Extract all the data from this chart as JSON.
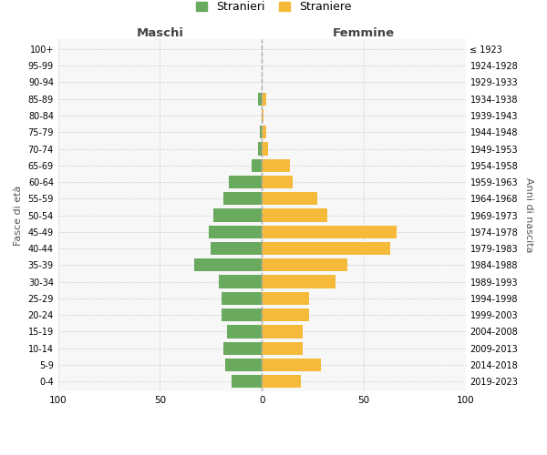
{
  "age_groups": [
    "0-4",
    "5-9",
    "10-14",
    "15-19",
    "20-24",
    "25-29",
    "30-34",
    "35-39",
    "40-44",
    "45-49",
    "50-54",
    "55-59",
    "60-64",
    "65-69",
    "70-74",
    "75-79",
    "80-84",
    "85-89",
    "90-94",
    "95-99",
    "100+"
  ],
  "birth_years": [
    "2019-2023",
    "2014-2018",
    "2009-2013",
    "2004-2008",
    "1999-2003",
    "1994-1998",
    "1989-1993",
    "1984-1988",
    "1979-1983",
    "1974-1978",
    "1969-1973",
    "1964-1968",
    "1959-1963",
    "1954-1958",
    "1949-1953",
    "1944-1948",
    "1939-1943",
    "1934-1938",
    "1929-1933",
    "1924-1928",
    "≤ 1923"
  ],
  "maschi": [
    15,
    18,
    19,
    17,
    20,
    20,
    21,
    33,
    25,
    26,
    24,
    19,
    16,
    5,
    2,
    1,
    0,
    2,
    0,
    0,
    0
  ],
  "femmine": [
    19,
    29,
    20,
    20,
    23,
    23,
    36,
    42,
    63,
    66,
    32,
    27,
    15,
    14,
    3,
    2,
    1,
    2,
    0,
    0,
    0
  ],
  "male_color": "#6aaa5e",
  "female_color": "#f5ba3a",
  "legend_male": "Stranieri",
  "legend_female": "Straniere",
  "xlabel_left": "Maschi",
  "xlabel_right": "Femmine",
  "ylabel_left": "Fasce di età",
  "ylabel_right": "Anni di nascita",
  "xlim": 100,
  "bg_color": "#f7f7f7",
  "grid_color": "#cccccc",
  "dashed_line_color": "#aaaaaa"
}
